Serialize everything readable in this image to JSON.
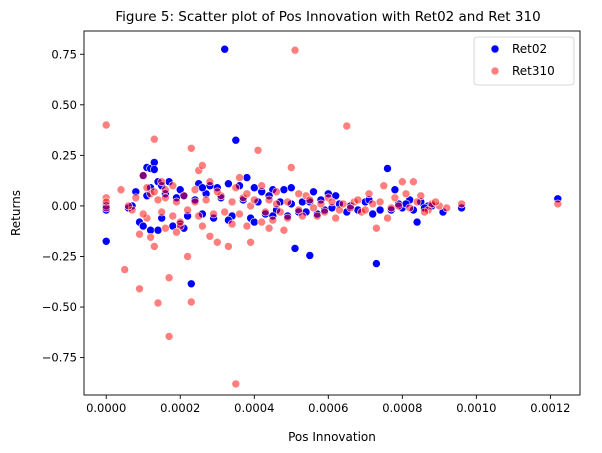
{
  "chart_data": {
    "type": "scatter",
    "title": "Figure 5: Scatter plot of Pos Innovation with Ret02 and Ret 310",
    "xlabel": "Pos Innovation",
    "ylabel": "Returns",
    "xlim": [
      -6e-05,
      0.00128
    ],
    "ylim": [
      -0.935,
      0.865
    ],
    "xticks": [
      0.0,
      0.0002,
      0.0004,
      0.0006,
      0.0008,
      0.001,
      0.0012
    ],
    "xtick_labels": [
      "0.0000",
      "0.0002",
      "0.0004",
      "0.0006",
      "0.0008",
      "0.0010",
      "0.0012"
    ],
    "yticks": [
      -0.75,
      -0.5,
      -0.25,
      0.0,
      0.25,
      0.5,
      0.75
    ],
    "ytick_labels": [
      "−0.75",
      "−0.50",
      "−0.25",
      "0.00",
      "0.25",
      "0.50",
      "0.75"
    ],
    "grid": false,
    "legend": {
      "placement": "top-right"
    },
    "series": [
      {
        "name": "Ret02",
        "color": "#0000ff",
        "opacity": 1.0,
        "points": [
          [
            0.0,
            -0.02
          ],
          [
            0.0,
            0.0
          ],
          [
            0.0,
            -0.175
          ],
          [
            0.0001,
            0.15
          ],
          [
            0.00011,
            0.19
          ],
          [
            0.00012,
            0.185
          ],
          [
            0.00013,
            0.215
          ],
          [
            0.00013,
            0.18
          ],
          [
            0.00014,
            0.12
          ],
          [
            0.00015,
            0.1
          ],
          [
            8e-05,
            0.07
          ],
          [
            9e-05,
            -0.08
          ],
          [
            0.0001,
            -0.1
          ],
          [
            0.00012,
            -0.12
          ],
          [
            0.00014,
            -0.12
          ],
          [
            0.00018,
            -0.1
          ],
          [
            0.0002,
            -0.09
          ],
          [
            0.00023,
            -0.385
          ],
          [
            0.00032,
            0.775
          ],
          [
            0.00035,
            0.325
          ],
          [
            0.00025,
            0.11
          ],
          [
            0.00028,
            0.1
          ],
          [
            0.0003,
            0.09
          ],
          [
            0.00033,
            0.11
          ],
          [
            0.00038,
            0.14
          ],
          [
            0.00036,
            0.1
          ],
          [
            0.0004,
            0.09
          ],
          [
            0.00042,
            0.07
          ],
          [
            0.00045,
            0.08
          ],
          [
            0.00048,
            0.08
          ],
          [
            0.0005,
            0.09
          ],
          [
            0.00052,
            -0.03
          ],
          [
            0.00051,
            -0.21
          ],
          [
            0.00055,
            -0.245
          ],
          [
            0.00056,
            0.07
          ],
          [
            0.0006,
            0.06
          ],
          [
            0.00062,
            0.05
          ],
          [
            0.00065,
            -0.03
          ],
          [
            0.0007,
            0.02
          ],
          [
            0.00072,
            -0.04
          ],
          [
            0.00073,
            -0.285
          ],
          [
            0.00076,
            0.185
          ],
          [
            0.00078,
            0.08
          ],
          [
            0.0008,
            -0.01
          ],
          [
            0.00082,
            0.03
          ],
          [
            0.00084,
            -0.08
          ],
          [
            0.00085,
            0.02
          ],
          [
            0.00087,
            0.0
          ],
          [
            0.00091,
            -0.03
          ],
          [
            0.00096,
            -0.01
          ],
          [
            0.00122,
            0.035
          ],
          [
            6e-05,
            -0.01
          ],
          [
            7e-05,
            0.0
          ],
          [
            0.00011,
            0.05
          ],
          [
            0.00016,
            0.06
          ],
          [
            0.00019,
            0.04
          ],
          [
            0.00021,
            0.05
          ],
          [
            0.00022,
            -0.05
          ],
          [
            0.00024,
            0.03
          ],
          [
            0.00026,
            -0.04
          ],
          [
            0.00027,
            0.06
          ],
          [
            0.00029,
            -0.06
          ],
          [
            0.00031,
            0.04
          ],
          [
            0.00034,
            -0.05
          ],
          [
            0.00037,
            0.03
          ],
          [
            0.00039,
            -0.06
          ],
          [
            0.00041,
            0.02
          ],
          [
            0.00043,
            -0.04
          ],
          [
            0.00044,
            0.05
          ],
          [
            0.00046,
            -0.02
          ],
          [
            0.00047,
            0.02
          ],
          [
            0.00049,
            -0.05
          ],
          [
            0.00053,
            0.02
          ],
          [
            0.00054,
            -0.03
          ],
          [
            0.00057,
            -0.04
          ],
          [
            0.00058,
            0.03
          ],
          [
            0.00059,
            -0.02
          ],
          [
            0.00061,
            -0.01
          ],
          [
            0.00063,
            0.01
          ],
          [
            0.00066,
            0.0
          ],
          [
            0.00068,
            -0.02
          ],
          [
            0.00071,
            0.03
          ],
          [
            0.00074,
            -0.02
          ],
          [
            0.00077,
            -0.02
          ],
          [
            0.00079,
            0.01
          ],
          [
            0.00081,
            0.01
          ],
          [
            0.00083,
            -0.02
          ],
          [
            0.00086,
            -0.01
          ],
          [
            0.00088,
            0.0
          ],
          [
            0.00012,
            0.09
          ],
          [
            0.00017,
            0.12
          ],
          [
            0.00015,
            -0.06
          ],
          [
            0.0002,
            0.08
          ],
          [
            0.00026,
            0.09
          ],
          [
            0.00033,
            -0.07
          ],
          [
            0.0004,
            -0.08
          ],
          [
            0.00045,
            -0.05
          ],
          [
            0.0005,
            0.01
          ],
          [
            0.00055,
            0.02
          ],
          [
            0.00021,
            -0.11
          ]
        ]
      },
      {
        "name": "Ret310",
        "color": "#ff0000",
        "opacity": 0.5,
        "points": [
          [
            0.0,
            0.4
          ],
          [
            0.0,
            0.04
          ],
          [
            0.0,
            0.02
          ],
          [
            0.0,
            -0.01
          ],
          [
            5e-05,
            -0.315
          ],
          [
            7e-05,
            -0.02
          ],
          [
            9e-05,
            -0.41
          ],
          [
            0.0001,
            0.15
          ],
          [
            9e-05,
            -0.14
          ],
          [
            0.00012,
            -0.155
          ],
          [
            0.00013,
            0.33
          ],
          [
            0.00013,
            -0.2
          ],
          [
            0.00014,
            -0.48
          ],
          [
            0.00016,
            -0.11
          ],
          [
            0.00017,
            -0.355
          ],
          [
            0.00017,
            -0.645
          ],
          [
            0.0002,
            -0.1
          ],
          [
            0.00023,
            0.285
          ],
          [
            0.00023,
            -0.475
          ],
          [
            0.00022,
            -0.25
          ],
          [
            0.00025,
            0.175
          ],
          [
            0.00026,
            0.2
          ],
          [
            0.00028,
            -0.15
          ],
          [
            0.0003,
            -0.18
          ],
          [
            0.00033,
            -0.2
          ],
          [
            0.00035,
            -0.88
          ],
          [
            0.00036,
            0.14
          ],
          [
            0.00038,
            -0.1
          ],
          [
            0.00039,
            -0.18
          ],
          [
            0.00041,
            0.275
          ],
          [
            0.00042,
            0.1
          ],
          [
            0.00045,
            -0.07
          ],
          [
            0.00048,
            -0.12
          ],
          [
            0.0005,
            0.19
          ],
          [
            0.00051,
            0.77
          ],
          [
            0.00053,
            -0.05
          ],
          [
            0.00054,
            0.05
          ],
          [
            0.00057,
            -0.05
          ],
          [
            0.0006,
            0.04
          ],
          [
            0.00062,
            -0.06
          ],
          [
            0.00065,
            0.395
          ],
          [
            0.00067,
            0.02
          ],
          [
            0.00069,
            -0.03
          ],
          [
            0.00071,
            0.06
          ],
          [
            0.00073,
            -0.11
          ],
          [
            0.00075,
            0.1
          ],
          [
            0.00076,
            -0.06
          ],
          [
            0.00078,
            0.04
          ],
          [
            0.0008,
            0.12
          ],
          [
            0.00081,
            0.06
          ],
          [
            0.00083,
            0.12
          ],
          [
            0.00085,
            0.05
          ],
          [
            0.00087,
            -0.02
          ],
          [
            0.0009,
            0.0
          ],
          [
            0.00096,
            0.01
          ],
          [
            0.00122,
            0.01
          ],
          [
            4e-05,
            0.08
          ],
          [
            6e-05,
            0.0
          ],
          [
            8e-05,
            0.04
          ],
          [
            0.00011,
            -0.06
          ],
          [
            0.00012,
            0.06
          ],
          [
            0.00014,
            0.03
          ],
          [
            0.00015,
            -0.03
          ],
          [
            0.00016,
            0.04
          ],
          [
            0.00018,
            -0.05
          ],
          [
            0.00019,
            0.02
          ],
          [
            0.00021,
            0.05
          ],
          [
            0.00022,
            -0.02
          ],
          [
            0.00024,
            0.02
          ],
          [
            0.00025,
            -0.05
          ],
          [
            0.00027,
            0.03
          ],
          [
            0.00029,
            -0.04
          ],
          [
            0.00031,
            0.05
          ],
          [
            0.00032,
            -0.03
          ],
          [
            0.00034,
            0.02
          ],
          [
            0.00036,
            -0.04
          ],
          [
            0.00037,
            0.04
          ],
          [
            0.00039,
            0.0
          ],
          [
            0.0004,
            0.03
          ],
          [
            0.00043,
            -0.03
          ],
          [
            0.00044,
            0.03
          ],
          [
            0.00046,
            0.01
          ],
          [
            0.00047,
            -0.03
          ],
          [
            0.00049,
            0.02
          ],
          [
            0.00052,
            -0.02
          ],
          [
            0.00055,
            0.03
          ],
          [
            0.00056,
            -0.01
          ],
          [
            0.00058,
            0.01
          ],
          [
            0.00059,
            -0.03
          ],
          [
            0.00061,
            0.02
          ],
          [
            0.00063,
            -0.02
          ],
          [
            0.00064,
            0.01
          ],
          [
            0.00066,
            -0.01
          ],
          [
            0.00068,
            0.03
          ],
          [
            0.0007,
            -0.02
          ],
          [
            0.00072,
            0.01
          ],
          [
            0.00074,
            0.02
          ],
          [
            0.00077,
            -0.01
          ],
          [
            0.00079,
            0.0
          ],
          [
            0.00082,
            -0.01
          ],
          [
            0.00084,
            0.02
          ],
          [
            0.00086,
            -0.03
          ],
          [
            0.00088,
            0.01
          ],
          [
            0.00089,
            0.02
          ],
          [
            0.00092,
            -0.01
          ],
          [
            0.00011,
            0.09
          ],
          [
            0.00013,
            0.07
          ],
          [
            0.00018,
            0.1
          ],
          [
            0.0002,
            -0.08
          ],
          [
            0.00024,
            0.08
          ],
          [
            0.00026,
            -0.1
          ],
          [
            0.0003,
            0.07
          ],
          [
            0.00034,
            -0.09
          ],
          [
            0.00038,
            0.06
          ],
          [
            0.00042,
            -0.08
          ],
          [
            0.00046,
            0.07
          ],
          [
            0.00049,
            -0.06
          ],
          [
            0.00052,
            0.06
          ],
          [
            0.00015,
            0.12
          ],
          [
            0.00019,
            -0.13
          ],
          [
            0.00028,
            0.12
          ],
          [
            0.00035,
            0.09
          ],
          [
            0.00044,
            -0.11
          ],
          [
            0.0001,
            -0.04
          ],
          [
            0.00016,
            0.08
          ]
        ]
      }
    ]
  }
}
